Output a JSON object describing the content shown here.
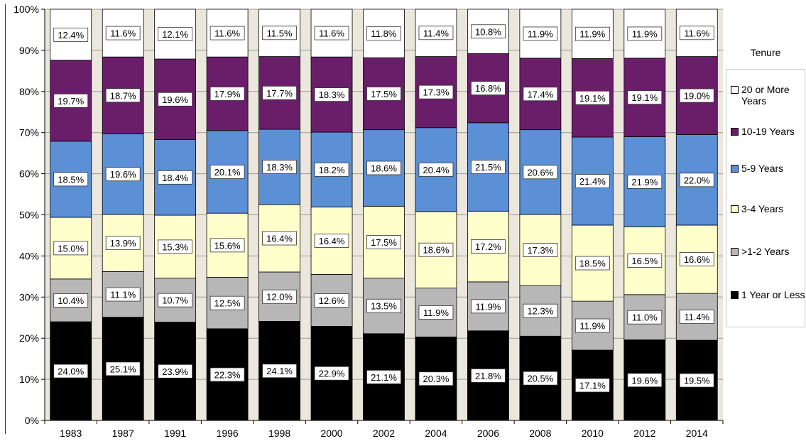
{
  "chart_data": {
    "type": "bar",
    "stacked": true,
    "categories": [
      "1983",
      "1987",
      "1991",
      "1996",
      "1998",
      "2000",
      "2002",
      "2004",
      "2006",
      "2008",
      "2010",
      "2012",
      "2014"
    ],
    "y_ticks": [
      "0%",
      "10%",
      "20%",
      "30%",
      "40%",
      "50%",
      "60%",
      "70%",
      "80%",
      "90%",
      "100%"
    ],
    "ylim": [
      0,
      100
    ],
    "grid": true,
    "legend_title": "Tenure",
    "legend_position": "right",
    "series": [
      {
        "name": "1 Year or Less",
        "color": "#000000",
        "values": [
          24.0,
          25.1,
          23.9,
          22.3,
          24.1,
          22.9,
          21.1,
          20.3,
          21.8,
          20.5,
          17.1,
          19.6,
          19.5
        ],
        "labels": [
          "24.0%",
          "25.1%",
          "23.9%",
          "22.3%",
          "24.1%",
          "22.9%",
          "21.1%",
          "20.3%",
          "21.8%",
          "20.5%",
          "17.1%",
          "19.6%",
          "19.5%"
        ]
      },
      {
        "name": ">1-2 Years",
        "color": "#b7b7b7",
        "values": [
          10.4,
          11.1,
          10.7,
          12.5,
          12.0,
          12.6,
          13.5,
          11.9,
          11.9,
          12.3,
          11.9,
          11.0,
          11.4
        ],
        "labels": [
          "10.4%",
          "11.1%",
          "10.7%",
          "12.5%",
          "12.0%",
          "12.6%",
          "13.5%",
          "11.9%",
          "11.9%",
          "12.3%",
          "11.9%",
          "11.0%",
          "11.4%"
        ]
      },
      {
        "name": "3-4 Years",
        "color": "#ffffcc",
        "values": [
          15.0,
          13.9,
          15.3,
          15.6,
          16.4,
          16.4,
          17.5,
          18.6,
          17.2,
          17.3,
          18.5,
          16.5,
          16.6
        ],
        "labels": [
          "15.0%",
          "13.9%",
          "15.3%",
          "15.6%",
          "16.4%",
          "16.4%",
          "17.5%",
          "18.6%",
          "17.2%",
          "17.3%",
          "18.5%",
          "16.5%",
          "16.6%"
        ]
      },
      {
        "name": "5-9 Years",
        "color": "#5b8fd6",
        "values": [
          18.5,
          19.6,
          18.4,
          20.1,
          18.3,
          18.2,
          18.6,
          20.4,
          21.5,
          20.6,
          21.4,
          21.9,
          22.0
        ],
        "labels": [
          "18.5%",
          "19.6%",
          "18.4%",
          "20.1%",
          "18.3%",
          "18.2%",
          "18.6%",
          "20.4%",
          "21.5%",
          "20.6%",
          "21.4%",
          "21.9%",
          "22.0%"
        ]
      },
      {
        "name": "10-19 Years",
        "color": "#6a1e6a",
        "values": [
          19.7,
          18.7,
          19.6,
          17.9,
          17.7,
          18.3,
          17.5,
          17.3,
          16.8,
          17.4,
          19.1,
          19.1,
          19.0
        ],
        "labels": [
          "19.7%",
          "18.7%",
          "19.6%",
          "17.9%",
          "17.7%",
          "18.3%",
          "17.5%",
          "17.3%",
          "16.8%",
          "17.4%",
          "19.1%",
          "19.1%",
          "19.0%"
        ]
      },
      {
        "name": "20 or More Years",
        "color": "#ffffff",
        "values": [
          12.4,
          11.6,
          12.1,
          11.6,
          11.5,
          11.6,
          11.8,
          11.4,
          10.8,
          11.9,
          11.9,
          11.9,
          11.6
        ],
        "labels": [
          "12.4%",
          "11.6%",
          "12.1%",
          "11.6%",
          "11.5%",
          "11.6%",
          "11.8%",
          "11.4%",
          "10.8%",
          "11.9%",
          "11.9%",
          "11.9%",
          "11.6%"
        ]
      }
    ],
    "legend_order": [
      "20 or More Years",
      "10-19 Years",
      "5-9 Years",
      "3-4 Years",
      ">1-2 Years",
      "1 Year or Less"
    ],
    "colors": {
      "plot_background": "#ebe7dc",
      "gridline": "#9a9a9a",
      "axis": "#000000"
    }
  }
}
